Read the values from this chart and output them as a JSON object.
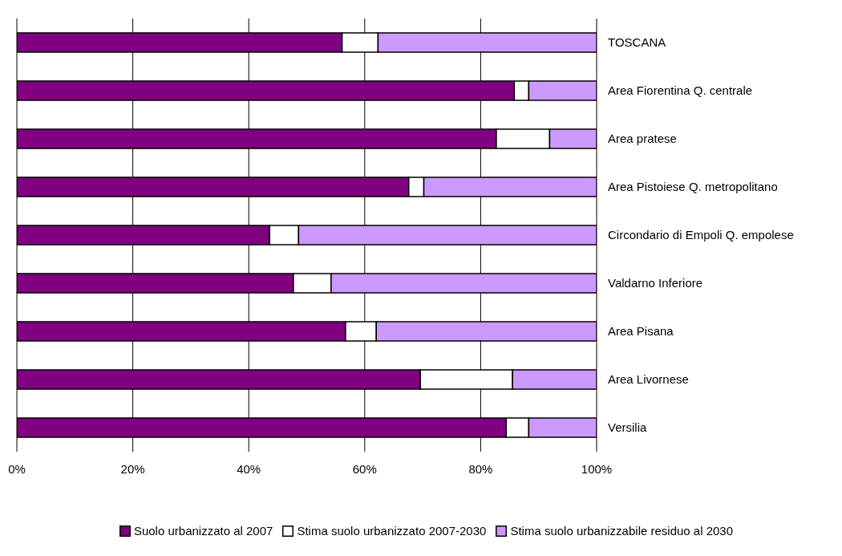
{
  "chart_data": {
    "type": "bar",
    "orientation": "horizontal",
    "stacked": true,
    "categories": [
      "TOSCANA",
      "Area Fiorentina Q. centrale",
      "Area pratese",
      "Area Pistoiese Q. metropolitano",
      "Circondario di Empoli Q. empolese",
      "Valdarno Inferiore",
      "Area Pisana",
      "Area Livornese",
      "Versilia"
    ],
    "series": [
      {
        "name": "Suolo urbanizzato al 2007",
        "color": "#800080",
        "values": [
          56.1,
          85.8,
          82.7,
          67.6,
          43.6,
          47.7,
          56.7,
          69.6,
          84.4
        ]
      },
      {
        "name": "Stima suolo urbanizzato 2007-2030",
        "color": "#ffffff",
        "values": [
          6.2,
          2.5,
          9.2,
          2.6,
          5.0,
          6.5,
          5.3,
          15.9,
          3.9
        ]
      },
      {
        "name": "Stima suolo urbanizzabile residuo al 2030",
        "color": "#cc99ff",
        "values": [
          37.7,
          11.7,
          8.1,
          29.8,
          51.4,
          45.8,
          38.0,
          14.5,
          11.7
        ]
      }
    ],
    "xlim": [
      0,
      100
    ],
    "xticks": [
      {
        "value": 0,
        "label": "0%"
      },
      {
        "value": 20,
        "label": "20%"
      },
      {
        "value": 40,
        "label": "40%"
      },
      {
        "value": 60,
        "label": "60%"
      },
      {
        "value": 80,
        "label": "80%"
      },
      {
        "value": 100,
        "label": "100%"
      }
    ],
    "grid": "x",
    "legend": "bottom"
  }
}
